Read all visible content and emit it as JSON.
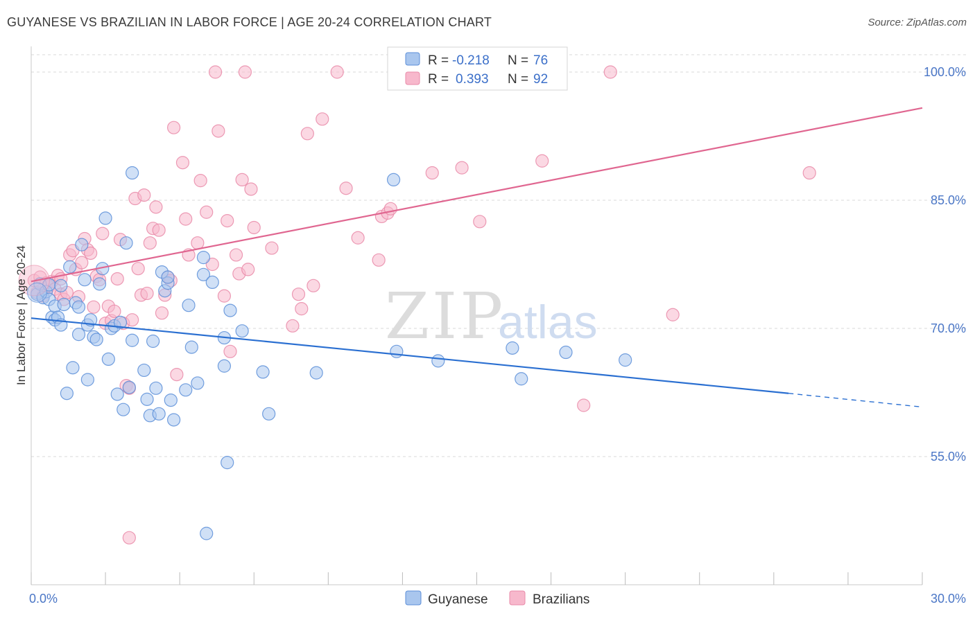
{
  "title": "GUYANESE VS BRAZILIAN IN LABOR FORCE | AGE 20-24 CORRELATION CHART",
  "source": "Source: ZipAtlas.com",
  "watermark": {
    "zip": "ZIP",
    "atlas": "atlas"
  },
  "legend": {
    "r_label": "R =",
    "n_label": "N =",
    "rows": [
      {
        "r": "-0.218",
        "n": "76"
      },
      {
        "r": "0.393",
        "n": "92"
      }
    ]
  },
  "bottom_legend": [
    "Guyanese",
    "Brazilians"
  ],
  "colors": {
    "guyanese_fill": "#a9c6ee",
    "guyanese_stroke": "#5b8ed8",
    "guyanese_line": "#2a6fd1",
    "brazilians_fill": "#f7b8cc",
    "brazilians_stroke": "#e98aa8",
    "brazilians_line": "#e06690",
    "tick_label": "#4a76c6",
    "grid": "#d9d9d9"
  },
  "chart_data": {
    "type": "scatter",
    "title": "GUYANESE VS BRAZILIAN IN LABOR FORCE | AGE 20-24 CORRELATION CHART",
    "xlabel": "",
    "ylabel": "In Labor Force | Age 20-24",
    "xlim": [
      0,
      30
    ],
    "ylim": [
      40,
      103
    ],
    "x_tick_labels": [
      "0.0%",
      "30.0%"
    ],
    "y_ticks": [
      55,
      70,
      85,
      100
    ],
    "y_tick_labels": [
      "55.0%",
      "70.0%",
      "85.0%",
      "100.0%"
    ],
    "grid": true,
    "legend_position": "top-center",
    "series": [
      {
        "name": "Guyanese",
        "r": -0.218,
        "n": 76,
        "trend": {
          "x": [
            0,
            25.5
          ],
          "y": [
            71.2,
            62.4
          ],
          "dashed_to": [
            30,
            60.8
          ]
        },
        "points": [
          [
            0.2,
            74.0
          ],
          [
            0.3,
            75.2
          ],
          [
            0.4,
            73.6
          ],
          [
            0.5,
            74.3
          ],
          [
            0.6,
            73.4
          ],
          [
            0.6,
            75.1
          ],
          [
            0.7,
            71.3
          ],
          [
            0.8,
            72.6
          ],
          [
            0.8,
            71.0
          ],
          [
            0.9,
            71.3
          ],
          [
            1.0,
            70.4
          ],
          [
            1.0,
            75.0
          ],
          [
            1.1,
            72.8
          ],
          [
            1.2,
            62.4
          ],
          [
            1.3,
            77.2
          ],
          [
            1.4,
            65.4
          ],
          [
            1.5,
            73.0
          ],
          [
            1.6,
            72.5
          ],
          [
            1.6,
            69.3
          ],
          [
            1.7,
            79.8
          ],
          [
            1.8,
            75.7
          ],
          [
            1.9,
            64.0
          ],
          [
            1.9,
            70.4
          ],
          [
            2.0,
            71.0
          ],
          [
            2.1,
            69.0
          ],
          [
            2.2,
            68.7
          ],
          [
            2.3,
            75.2
          ],
          [
            2.4,
            77.0
          ],
          [
            2.5,
            82.9
          ],
          [
            2.6,
            66.4
          ],
          [
            2.7,
            70.0
          ],
          [
            2.8,
            70.3
          ],
          [
            2.9,
            62.3
          ],
          [
            3.0,
            70.7
          ],
          [
            3.1,
            60.5
          ],
          [
            3.2,
            80.0
          ],
          [
            3.3,
            63.1
          ],
          [
            3.4,
            68.6
          ],
          [
            3.4,
            88.2
          ],
          [
            3.8,
            65.1
          ],
          [
            3.9,
            61.7
          ],
          [
            4.0,
            59.8
          ],
          [
            4.1,
            68.5
          ],
          [
            4.2,
            63.0
          ],
          [
            4.3,
            60.0
          ],
          [
            4.4,
            76.6
          ],
          [
            4.5,
            74.4
          ],
          [
            4.6,
            75.3
          ],
          [
            4.6,
            76.0
          ],
          [
            4.7,
            61.6
          ],
          [
            4.8,
            59.3
          ],
          [
            5.2,
            62.8
          ],
          [
            5.3,
            72.7
          ],
          [
            5.4,
            67.8
          ],
          [
            5.6,
            63.6
          ],
          [
            5.8,
            76.3
          ],
          [
            5.8,
            78.3
          ],
          [
            6.1,
            75.4
          ],
          [
            6.5,
            68.9
          ],
          [
            6.7,
            72.1
          ],
          [
            6.5,
            65.6
          ],
          [
            5.9,
            46.0
          ],
          [
            6.6,
            54.3
          ],
          [
            7.1,
            69.7
          ],
          [
            7.8,
            64.9
          ],
          [
            8.0,
            60.0
          ],
          [
            9.6,
            64.8
          ],
          [
            12.2,
            87.4
          ],
          [
            12.3,
            67.3
          ],
          [
            13.7,
            66.2
          ],
          [
            16.2,
            67.7
          ],
          [
            16.5,
            64.1
          ],
          [
            18.0,
            67.2
          ],
          [
            20.0,
            66.3
          ]
        ]
      },
      {
        "name": "Brazilians",
        "r": 0.393,
        "n": 92,
        "trend": {
          "x": [
            0,
            30
          ],
          "y": [
            75.5,
            95.8
          ]
        },
        "points": [
          [
            0.1,
            75.6
          ],
          [
            0.2,
            74.2
          ],
          [
            0.3,
            76.0
          ],
          [
            0.4,
            73.8
          ],
          [
            0.5,
            75.3
          ],
          [
            0.6,
            74.9
          ],
          [
            0.7,
            75.5
          ],
          [
            0.8,
            74.6
          ],
          [
            0.9,
            76.2
          ],
          [
            1.0,
            74.0
          ],
          [
            1.0,
            75.8
          ],
          [
            1.1,
            73.4
          ],
          [
            1.2,
            74.2
          ],
          [
            1.3,
            78.6
          ],
          [
            1.4,
            79.1
          ],
          [
            1.5,
            76.9
          ],
          [
            1.6,
            73.7
          ],
          [
            1.7,
            77.7
          ],
          [
            1.8,
            80.5
          ],
          [
            1.9,
            79.2
          ],
          [
            2.0,
            78.8
          ],
          [
            2.1,
            72.5
          ],
          [
            2.2,
            76.1
          ],
          [
            2.3,
            75.7
          ],
          [
            2.4,
            81.1
          ],
          [
            2.5,
            70.6
          ],
          [
            2.6,
            72.6
          ],
          [
            2.7,
            70.9
          ],
          [
            2.8,
            72.0
          ],
          [
            2.9,
            75.8
          ],
          [
            3.0,
            80.4
          ],
          [
            3.1,
            70.6
          ],
          [
            3.2,
            63.3
          ],
          [
            3.3,
            63.0
          ],
          [
            3.4,
            71.0
          ],
          [
            3.5,
            85.2
          ],
          [
            3.6,
            77.0
          ],
          [
            3.7,
            73.9
          ],
          [
            3.8,
            85.6
          ],
          [
            3.9,
            74.1
          ],
          [
            4.0,
            80.0
          ],
          [
            4.1,
            81.7
          ],
          [
            4.2,
            84.2
          ],
          [
            4.3,
            81.5
          ],
          [
            4.4,
            71.8
          ],
          [
            4.5,
            73.9
          ],
          [
            4.6,
            76.0
          ],
          [
            4.7,
            75.6
          ],
          [
            4.8,
            93.5
          ],
          [
            4.9,
            64.6
          ],
          [
            5.1,
            89.4
          ],
          [
            5.2,
            82.8
          ],
          [
            5.3,
            78.6
          ],
          [
            5.6,
            80.0
          ],
          [
            5.7,
            87.3
          ],
          [
            5.9,
            83.6
          ],
          [
            6.1,
            77.5
          ],
          [
            6.2,
            100.0
          ],
          [
            6.3,
            93.1
          ],
          [
            6.5,
            73.8
          ],
          [
            6.6,
            82.6
          ],
          [
            6.7,
            67.3
          ],
          [
            6.9,
            78.6
          ],
          [
            7.0,
            76.4
          ],
          [
            7.1,
            87.4
          ],
          [
            7.2,
            100.0
          ],
          [
            7.3,
            76.9
          ],
          [
            7.4,
            86.3
          ],
          [
            7.5,
            81.8
          ],
          [
            8.1,
            79.4
          ],
          [
            8.8,
            70.3
          ],
          [
            9.0,
            74.0
          ],
          [
            9.1,
            72.3
          ],
          [
            9.3,
            92.8
          ],
          [
            9.5,
            75.0
          ],
          [
            9.8,
            94.5
          ],
          [
            10.3,
            100.0
          ],
          [
            10.6,
            86.4
          ],
          [
            11.0,
            80.6
          ],
          [
            11.7,
            78.0
          ],
          [
            11.8,
            83.1
          ],
          [
            12.0,
            83.5
          ],
          [
            12.1,
            84.0
          ],
          [
            13.5,
            88.2
          ],
          [
            14.5,
            88.8
          ],
          [
            15.1,
            82.5
          ],
          [
            17.2,
            89.6
          ],
          [
            18.6,
            61.0
          ],
          [
            19.5,
            100.0
          ],
          [
            21.6,
            71.6
          ],
          [
            26.2,
            88.2
          ],
          [
            3.3,
            45.5
          ]
        ]
      }
    ]
  }
}
